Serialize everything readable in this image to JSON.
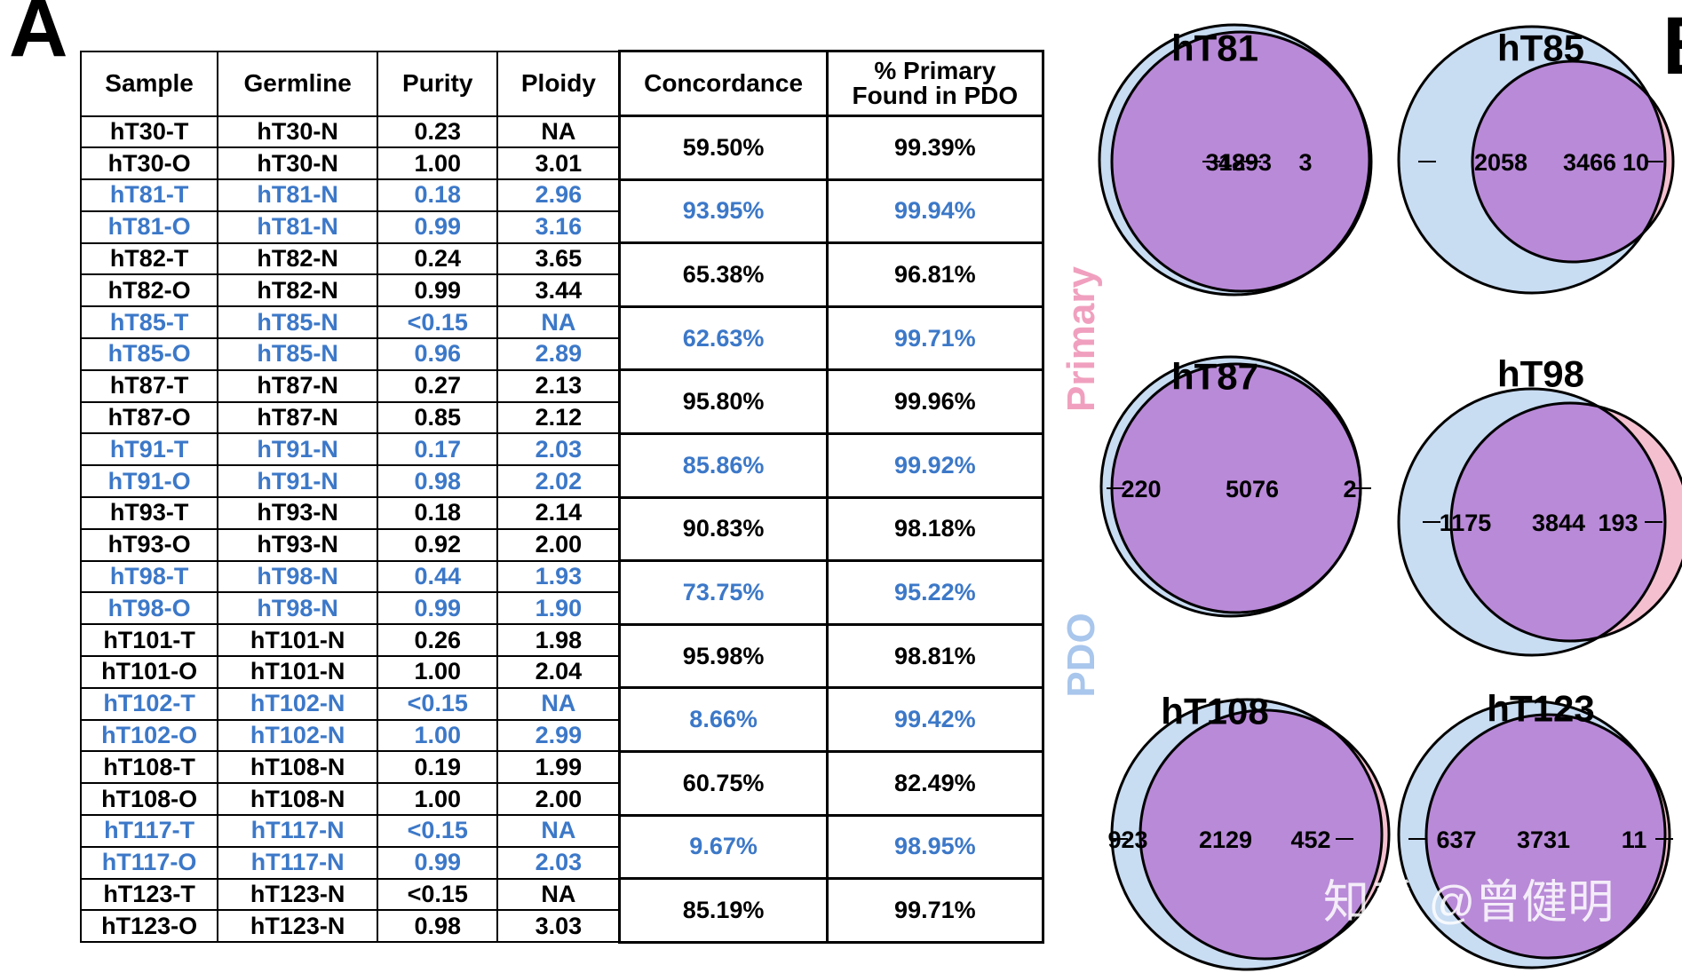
{
  "panel_labels": {
    "a": "A",
    "b": "B"
  },
  "table": {
    "headers": [
      "Sample",
      "Germline",
      "Purity",
      "Ploidy",
      "Concordance",
      "% Primary",
      "Found in PDO"
    ],
    "groups": [
      {
        "color": "black",
        "concordance": "59.50%",
        "primary_found": "99.39%",
        "rows": [
          [
            "hT30-T",
            "hT30-N",
            "0.23",
            "NA"
          ],
          [
            "hT30-O",
            "hT30-N",
            "1.00",
            "3.01"
          ]
        ]
      },
      {
        "color": "blue",
        "concordance": "93.95%",
        "primary_found": "99.94%",
        "rows": [
          [
            "hT81-T",
            "hT81-N",
            "0.18",
            "2.96"
          ],
          [
            "hT81-O",
            "hT81-N",
            "0.99",
            "3.16"
          ]
        ]
      },
      {
        "color": "black",
        "concordance": "65.38%",
        "primary_found": "96.81%",
        "rows": [
          [
            "hT82-T",
            "hT82-N",
            "0.24",
            "3.65"
          ],
          [
            "hT82-O",
            "hT82-N",
            "0.99",
            "3.44"
          ]
        ]
      },
      {
        "color": "blue",
        "concordance": "62.63%",
        "primary_found": "99.71%",
        "rows": [
          [
            "hT85-T",
            "hT85-N",
            "<0.15",
            "NA"
          ],
          [
            "hT85-O",
            "hT85-N",
            "0.96",
            "2.89"
          ]
        ]
      },
      {
        "color": "black",
        "concordance": "95.80%",
        "primary_found": "99.96%",
        "rows": [
          [
            "hT87-T",
            "hT87-N",
            "0.27",
            "2.13"
          ],
          [
            "hT87-O",
            "hT87-N",
            "0.85",
            "2.12"
          ]
        ]
      },
      {
        "color": "blue",
        "concordance": "85.86%",
        "primary_found": "99.92%",
        "rows": [
          [
            "hT91-T",
            "hT91-N",
            "0.17",
            "2.03"
          ],
          [
            "hT91-O",
            "hT91-N",
            "0.98",
            "2.02"
          ]
        ]
      },
      {
        "color": "black",
        "concordance": "90.83%",
        "primary_found": "98.18%",
        "rows": [
          [
            "hT93-T",
            "hT93-N",
            "0.18",
            "2.14"
          ],
          [
            "hT93-O",
            "hT93-N",
            "0.92",
            "2.00"
          ]
        ]
      },
      {
        "color": "blue",
        "concordance": "73.75%",
        "primary_found": "95.22%",
        "rows": [
          [
            "hT98-T",
            "hT98-N",
            "0.44",
            "1.93"
          ],
          [
            "hT98-O",
            "hT98-N",
            "0.99",
            "1.90"
          ]
        ]
      },
      {
        "color": "black",
        "concordance": "95.98%",
        "primary_found": "98.81%",
        "rows": [
          [
            "hT101-T",
            "hT101-N",
            "0.26",
            "1.98"
          ],
          [
            "hT101-O",
            "hT101-N",
            "1.00",
            "2.04"
          ]
        ]
      },
      {
        "color": "blue",
        "concordance": "8.66%",
        "primary_found": "99.42%",
        "rows": [
          [
            "hT102-T",
            "hT102-N",
            "<0.15",
            "NA"
          ],
          [
            "hT102-O",
            "hT102-N",
            "1.00",
            "2.99"
          ]
        ]
      },
      {
        "color": "black",
        "concordance": "60.75%",
        "primary_found": "82.49%",
        "rows": [
          [
            "hT108-T",
            "hT108-N",
            "0.19",
            "1.99"
          ],
          [
            "hT108-O",
            "hT108-N",
            "1.00",
            "2.00"
          ]
        ]
      },
      {
        "color": "blue",
        "concordance": "9.67%",
        "primary_found": "98.95%",
        "rows": [
          [
            "hT117-T",
            "hT117-N",
            "<0.15",
            "NA"
          ],
          [
            "hT117-O",
            "hT117-N",
            "0.99",
            "2.03"
          ]
        ]
      },
      {
        "color": "black",
        "concordance": "85.19%",
        "primary_found": "99.71%",
        "rows": [
          [
            "hT123-T",
            "hT123-N",
            "<0.15",
            "NA"
          ],
          [
            "hT123-O",
            "hT123-N",
            "0.98",
            "3.03"
          ]
        ]
      }
    ]
  },
  "venn": {
    "legend": {
      "primary": "Primary",
      "pdo": "PDO"
    },
    "colors": {
      "primary_only": "#f4c0d0",
      "pdo_only": "#c8dcf2",
      "overlap": "#b98ad8"
    },
    "diagrams": [
      {
        "title": "hT81",
        "pdo_only": "312",
        "shared": "4893",
        "primary_only": "3"
      },
      {
        "title": "hT85",
        "pdo_only": "2058",
        "shared": "3466",
        "primary_only": "10"
      },
      {
        "title": "hT87",
        "pdo_only": "220",
        "shared": "5076",
        "primary_only": "2"
      },
      {
        "title": "hT98",
        "pdo_only": "1175",
        "shared": "3844",
        "primary_only": "193"
      },
      {
        "title": "hT108",
        "pdo_only": "923",
        "shared": "2129",
        "primary_only": "452"
      },
      {
        "title": "hT123",
        "pdo_only": "637",
        "shared": "3731",
        "primary_only": "11"
      }
    ]
  },
  "watermark": "知乎 @曾健明"
}
